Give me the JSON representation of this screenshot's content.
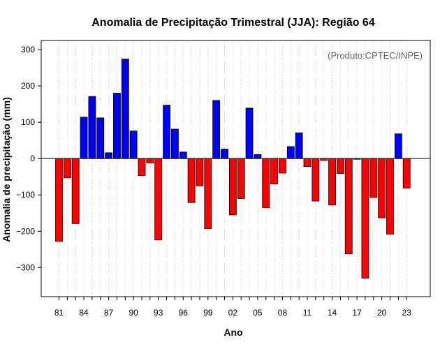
{
  "chart_data": {
    "type": "bar",
    "title": "Anomalia de Precipitação Trimestral (JJA): Região 64",
    "xlabel": "Ano",
    "ylabel": "Anomalia de precipitação (mm)",
    "credit": "(Produto:CPTEC/INPE)",
    "ylim": [
      -380,
      325
    ],
    "yticks": [
      -300,
      -200,
      -100,
      0,
      100,
      200,
      300
    ],
    "ytick_labels": [
      "−300",
      "−200",
      "−100",
      "0",
      "100",
      "200",
      "300"
    ],
    "xtick_labels": [
      "81",
      "84",
      "87",
      "90",
      "93",
      "96",
      "99",
      "02",
      "05",
      "08",
      "11",
      "14",
      "17",
      "20",
      "23"
    ],
    "years": [
      1981,
      1982,
      1983,
      1984,
      1985,
      1986,
      1987,
      1988,
      1989,
      1990,
      1991,
      1992,
      1993,
      1994,
      1995,
      1996,
      1997,
      1998,
      1999,
      2000,
      2001,
      2002,
      2003,
      2004,
      2005,
      2006,
      2007,
      2008,
      2009,
      2010,
      2011,
      2012,
      2013,
      2014,
      2015,
      2016,
      2017,
      2018,
      2019,
      2020,
      2021,
      2022,
      2023
    ],
    "values": [
      -228,
      -53,
      -179,
      114,
      171,
      112,
      16,
      180,
      274,
      76,
      -47,
      -12,
      -224,
      147,
      81,
      18,
      -121,
      -75,
      -193,
      160,
      26,
      -155,
      -110,
      139,
      11,
      -135,
      -70,
      -40,
      33,
      71,
      -22,
      -117,
      -5,
      -128,
      -41,
      -262,
      -2,
      -329,
      -107,
      -163,
      -208,
      68,
      -81
    ],
    "positive_color": "#0000ff",
    "negative_color": "#ff0000",
    "grid": true
  }
}
